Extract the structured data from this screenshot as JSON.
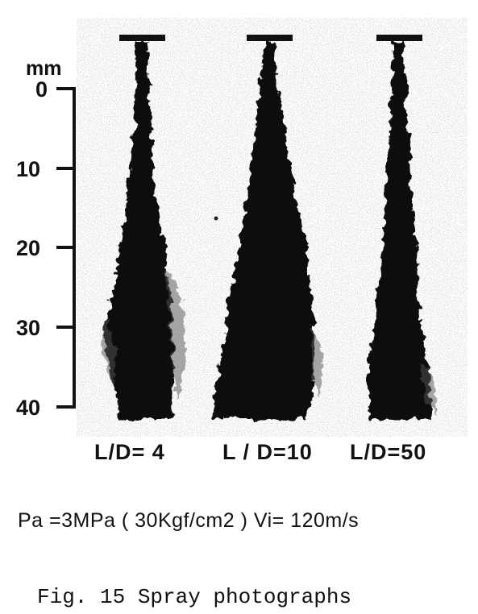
{
  "figure": {
    "scale": {
      "unit": "mm",
      "ticks": [
        "0",
        "10",
        "20",
        "30",
        "40"
      ]
    },
    "sprays": [
      {
        "label": "L/D= 4"
      },
      {
        "label": "L / D=10"
      },
      {
        "label": "L/D=50"
      }
    ],
    "conditions": "Pa =3MPa ( 30Kgf/cm2 )   Vi= 120m/s",
    "caption": "Fig. 15  Spray photographs"
  }
}
